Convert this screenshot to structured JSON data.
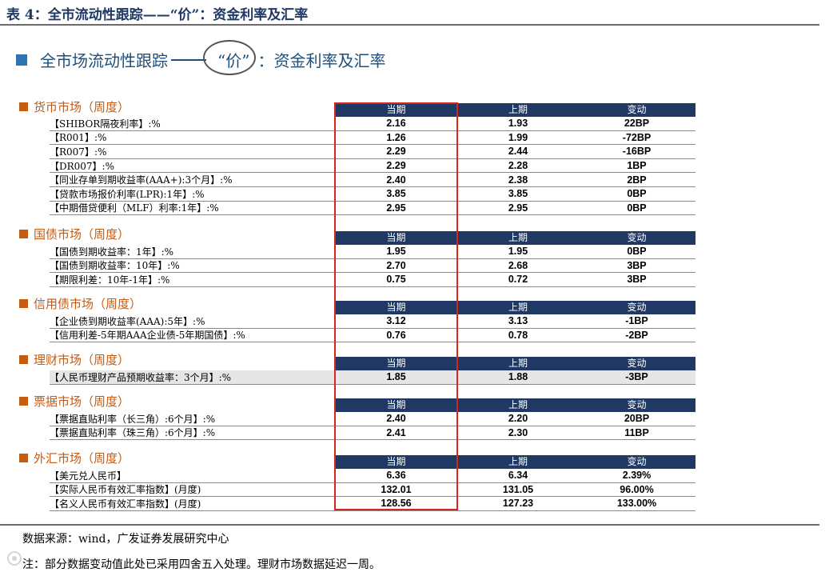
{
  "table_title": "表 4：全市流动性跟踪——“价”：资金利率及汇率",
  "slide_heading": {
    "pre": "全市场流动性跟踪",
    "circled": "“价”",
    "post": "：资金利率及汇率"
  },
  "col_headers": [
    "当期",
    "上期",
    "变动"
  ],
  "sections": [
    {
      "title": "货币市场（周度）",
      "rows": [
        {
          "label": "【SHIBOR隔夜利率】:%",
          "current": "2.16",
          "previous": "1.93",
          "change": "22BP"
        },
        {
          "label": "【R001】:%",
          "current": "1.26",
          "previous": "1.99",
          "change": "-72BP"
        },
        {
          "label": "【R007】:%",
          "current": "2.29",
          "previous": "2.44",
          "change": "-16BP"
        },
        {
          "label": "【DR007】:%",
          "current": "2.29",
          "previous": "2.28",
          "change": "1BP"
        },
        {
          "label": "【同业存单到期收益率(AAA+):3个月】:%",
          "current": "2.40",
          "previous": "2.38",
          "change": "2BP"
        },
        {
          "label": "【贷款市场报价利率(LPR):1年】:%",
          "current": "3.85",
          "previous": "3.85",
          "change": "0BP"
        },
        {
          "label": "【中期借贷便利（MLF）利率:1年】:%",
          "current": "2.95",
          "previous": "2.95",
          "change": "0BP"
        }
      ]
    },
    {
      "title": "国债市场（周度）",
      "rows": [
        {
          "label": "【国债到期收益率：1年】:%",
          "current": "1.95",
          "previous": "1.95",
          "change": "0BP"
        },
        {
          "label": "【国债到期收益率：10年】:%",
          "current": "2.70",
          "previous": "2.68",
          "change": "3BP"
        },
        {
          "label": "【期限利差：10年-1年】:%",
          "current": "0.75",
          "previous": "0.72",
          "change": "3BP"
        }
      ]
    },
    {
      "title": "信用债市场（周度）",
      "rows": [
        {
          "label": "【企业债到期收益率(AAA):5年】:%",
          "current": "3.12",
          "previous": "3.13",
          "change": "-1BP"
        },
        {
          "label": "【信用利差-5年期AAA企业债-5年期国债】:%",
          "current": "0.76",
          "previous": "0.78",
          "change": "-2BP"
        }
      ]
    },
    {
      "title": "理财市场（周度）",
      "rows": [
        {
          "label": "【人民币理财产品预期收益率：3个月】:%",
          "current": "1.85",
          "previous": "1.88",
          "change": "-3BP"
        }
      ]
    },
    {
      "title": "票据市场（周度）",
      "rows": [
        {
          "label": "【票据直贴利率（长三角）:6个月】:%",
          "current": "2.40",
          "previous": "2.20",
          "change": "20BP"
        },
        {
          "label": "【票据直贴利率（珠三角）:6个月】:%",
          "current": "2.41",
          "previous": "2.30",
          "change": "11BP"
        }
      ]
    },
    {
      "title": "外汇市场（周度）",
      "rows": [
        {
          "label": "【美元兑人民币】",
          "current": "6.36",
          "previous": "6.34",
          "change": "2.39%"
        },
        {
          "label": "【实际人民币有效汇率指数】(月度)",
          "current": "132.01",
          "previous": "131.05",
          "change": "96.00%"
        },
        {
          "label": "【名义人民币有效汇率指数】(月度)",
          "current": "128.56",
          "previous": "127.23",
          "change": "133.00%"
        }
      ]
    }
  ],
  "source": "数据来源：wind，广发证券发展研究中心",
  "note": "注：部分数据变动值此处已采用四舍五入处理。理财市场数据延迟一周。",
  "colors": {
    "header_bg": "#1f3864",
    "section_title": "#c55a11",
    "highlight_box": "#d9261c"
  }
}
